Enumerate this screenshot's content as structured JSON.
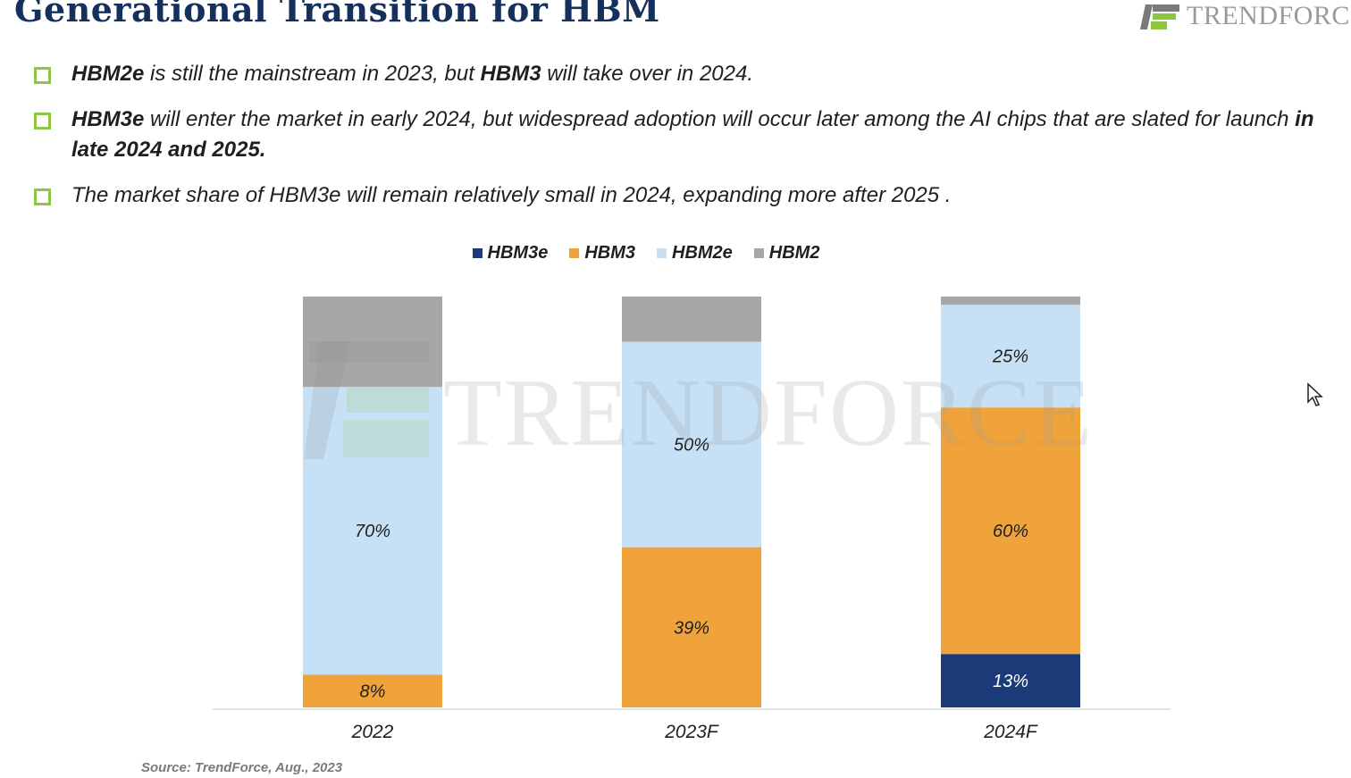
{
  "title": "Generational Transition for HBM",
  "logo": {
    "text": "TrendForce",
    "display": "TRENDFORC"
  },
  "bullets": [
    {
      "segments": [
        {
          "text": "HBM2e",
          "bold": true
        },
        {
          "text": " is still the mainstream in 2023, but ",
          "bold": false
        },
        {
          "text": "HBM3",
          "bold": true
        },
        {
          "text": " will take over in 2024.",
          "bold": false
        }
      ]
    },
    {
      "segments": [
        {
          "text": "HBM3e",
          "bold": true
        },
        {
          "text": " will enter the market in early 2024, but widespread adoption will occur later among the AI chips that are slated for launch ",
          "bold": false
        },
        {
          "text": "in late 2024 and 2025.",
          "bold": true
        }
      ]
    },
    {
      "segments": [
        {
          "text": "The market share of HBM3e will remain relatively small in 2024, expanding more after 2025 .",
          "bold": false
        }
      ]
    }
  ],
  "source": "Source: TrendForce, Aug., 2023",
  "watermark": "TRENDFORCE",
  "colors": {
    "title": "#16305e",
    "bullet_marker": "#8dc63f",
    "HBM3e": "#1a3a78",
    "HBM3": "#f0a33a",
    "HBM2e": "#c6e1f5",
    "HBM2": "#a7a7a7"
  },
  "chart_data": {
    "type": "bar",
    "stacked": true,
    "categories": [
      "2022",
      "2023F",
      "2024F"
    ],
    "ylim": [
      0,
      100
    ],
    "legend_position": "top-center",
    "grid": false,
    "series": [
      {
        "name": "HBM3e",
        "values": [
          0,
          0,
          13
        ],
        "labels": [
          "",
          "",
          "13%"
        ]
      },
      {
        "name": "HBM3",
        "values": [
          8,
          39,
          60
        ],
        "labels": [
          "8%",
          "39%",
          "60%"
        ]
      },
      {
        "name": "HBM2e",
        "values": [
          70,
          50,
          25
        ],
        "labels": [
          "70%",
          "50%",
          "25%"
        ]
      },
      {
        "name": "HBM2",
        "values": [
          22,
          11,
          2
        ],
        "labels": [
          "",
          "",
          ""
        ]
      }
    ]
  }
}
